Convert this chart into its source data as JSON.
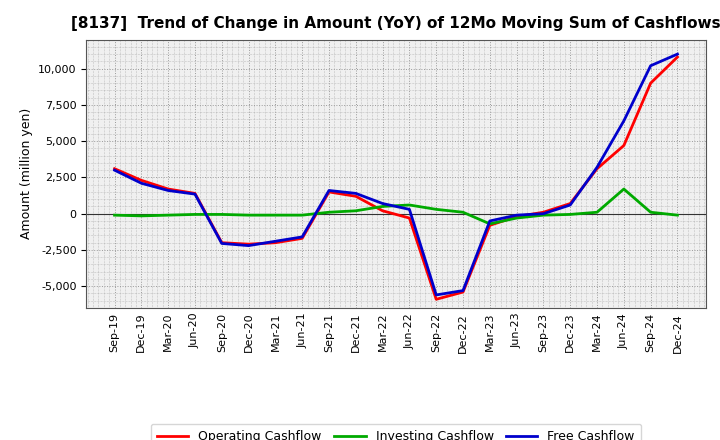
{
  "title": "[8137]  Trend of Change in Amount (YoY) of 12Mo Moving Sum of Cashflows",
  "ylabel": "Amount (million yen)",
  "background_color": "#ffffff",
  "plot_bg_color": "#f0f0f0",
  "grid_color": "#999999",
  "x_labels": [
    "Sep-19",
    "Dec-19",
    "Mar-20",
    "Jun-20",
    "Sep-20",
    "Dec-20",
    "Mar-21",
    "Jun-21",
    "Sep-21",
    "Dec-21",
    "Mar-22",
    "Jun-22",
    "Sep-22",
    "Dec-22",
    "Mar-23",
    "Jun-23",
    "Sep-23",
    "Dec-23",
    "Mar-24",
    "Jun-24",
    "Sep-24",
    "Dec-24"
  ],
  "operating": [
    3100,
    2300,
    1700,
    1400,
    -2000,
    -2100,
    -2000,
    -1700,
    1500,
    1200,
    200,
    -300,
    -5900,
    -5400,
    -800,
    -200,
    100,
    700,
    3100,
    4700,
    9000,
    10800
  ],
  "investing": [
    -100,
    -150,
    -100,
    -50,
    -50,
    -100,
    -100,
    -100,
    100,
    200,
    500,
    600,
    300,
    100,
    -700,
    -300,
    -100,
    -50,
    100,
    1700,
    100,
    -100
  ],
  "free": [
    3000,
    2100,
    1600,
    1350,
    -2050,
    -2200,
    -1900,
    -1600,
    1600,
    1400,
    700,
    300,
    -5600,
    -5300,
    -500,
    -100,
    0,
    600,
    3200,
    6400,
    10200,
    11000
  ],
  "operating_color": "#ff0000",
  "investing_color": "#00aa00",
  "free_color": "#0000cc",
  "ylim": [
    -6500,
    12000
  ],
  "yticks": [
    -5000,
    -2500,
    0,
    2500,
    5000,
    7500,
    10000
  ],
  "linewidth": 2.0,
  "title_fontsize": 11,
  "label_fontsize": 8,
  "ylabel_fontsize": 9
}
